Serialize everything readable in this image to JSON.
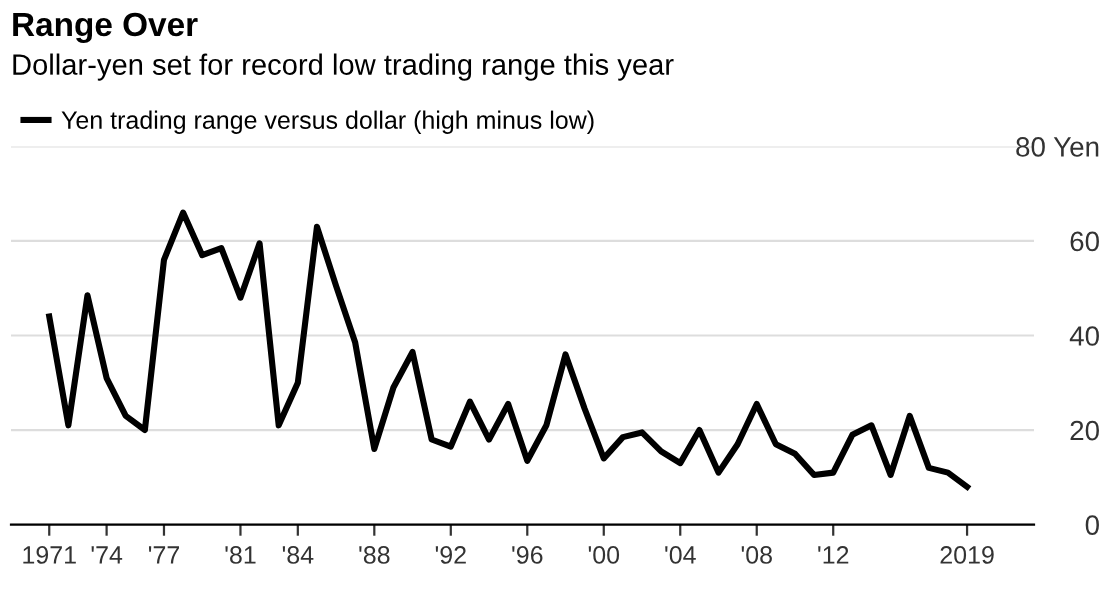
{
  "chart_data": {
    "type": "line",
    "title": "Range Over",
    "subtitle": "Dollar-yen set for record low trading range this year",
    "x": [
      1971,
      1972,
      1973,
      1974,
      1975,
      1976,
      1977,
      1978,
      1979,
      1980,
      1981,
      1982,
      1983,
      1984,
      1985,
      1986,
      1987,
      1988,
      1989,
      1990,
      1991,
      1992,
      1993,
      1994,
      1995,
      1996,
      1997,
      1998,
      1999,
      2000,
      2001,
      2002,
      2003,
      2004,
      2005,
      2006,
      2007,
      2008,
      2009,
      2010,
      2011,
      2012,
      2013,
      2014,
      2015,
      2016,
      2017,
      2018,
      2019
    ],
    "series": [
      {
        "name": "Yen trading range versus dollar (high minus low)",
        "color": "#000000",
        "values": [
          44,
          21,
          48.5,
          31,
          23,
          20,
          56,
          66,
          57,
          58.5,
          48,
          59.5,
          21,
          30,
          63,
          50.5,
          38.5,
          16,
          29,
          36.5,
          18,
          16.5,
          26,
          18,
          25.5,
          13.5,
          21,
          36,
          24.5,
          14,
          18.5,
          19.5,
          15.5,
          13,
          20,
          11,
          17,
          25.5,
          17,
          15,
          10.5,
          11,
          19,
          21,
          10.5,
          23,
          12,
          11,
          8
        ]
      }
    ],
    "xlim": [
      1969,
      2022.5
    ],
    "xticks": [
      {
        "value": 1971,
        "label": "1971"
      },
      {
        "value": 1974,
        "label": "'74"
      },
      {
        "value": 1977,
        "label": "'77"
      },
      {
        "value": 1981,
        "label": "'81"
      },
      {
        "value": 1984,
        "label": "'84"
      },
      {
        "value": 1988,
        "label": "'88"
      },
      {
        "value": 1992,
        "label": "'92"
      },
      {
        "value": 1996,
        "label": "'96"
      },
      {
        "value": 2000,
        "label": "'00"
      },
      {
        "value": 2004,
        "label": "'04"
      },
      {
        "value": 2008,
        "label": "'08"
      },
      {
        "value": 2012,
        "label": "'12"
      },
      {
        "value": 2019,
        "label": "2019"
      }
    ],
    "ylim": [
      0,
      80
    ],
    "yticks": [
      0,
      20,
      40,
      60,
      {
        "value": 80,
        "label": "80 Yen"
      }
    ],
    "grid": "y",
    "legend": "top left",
    "marker": "none",
    "line_style": "solid"
  }
}
